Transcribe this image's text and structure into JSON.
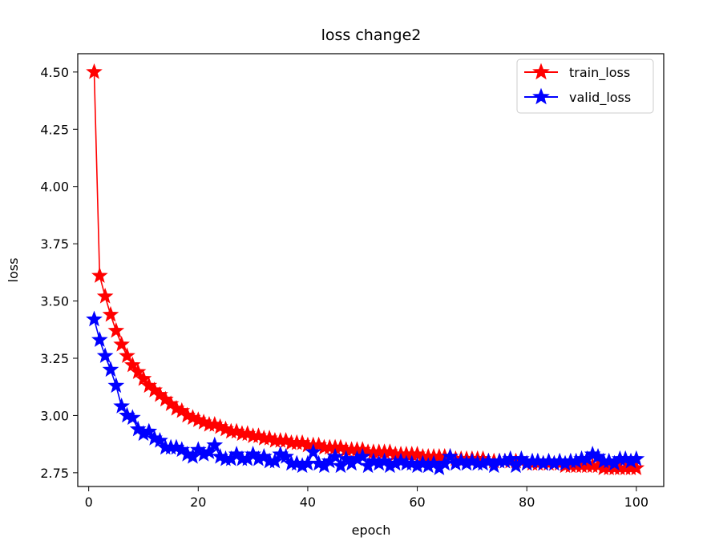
{
  "chart_data": {
    "type": "line",
    "title": "loss change2",
    "xlabel": "epoch",
    "ylabel": "loss",
    "xlim": [
      -2,
      105
    ],
    "ylim": [
      2.69,
      4.58
    ],
    "xticks": [
      0,
      20,
      40,
      60,
      80,
      100
    ],
    "xtick_labels": [
      "0",
      "20",
      "40",
      "60",
      "80",
      "100"
    ],
    "yticks": [
      2.75,
      3.0,
      3.25,
      3.5,
      3.75,
      4.0,
      4.25,
      4.5
    ],
    "ytick_labels": [
      "2.75",
      "3.00",
      "3.25",
      "3.50",
      "3.75",
      "4.00",
      "4.25",
      "4.50"
    ],
    "grid": false,
    "legend_position": "top-right",
    "marker": "star",
    "x": [
      1,
      2,
      3,
      4,
      5,
      6,
      7,
      8,
      9,
      10,
      11,
      12,
      13,
      14,
      15,
      16,
      17,
      18,
      19,
      20,
      21,
      22,
      23,
      24,
      25,
      26,
      27,
      28,
      29,
      30,
      31,
      32,
      33,
      34,
      35,
      36,
      37,
      38,
      39,
      40,
      41,
      42,
      43,
      44,
      45,
      46,
      47,
      48,
      49,
      50,
      51,
      52,
      53,
      54,
      55,
      56,
      57,
      58,
      59,
      60,
      61,
      62,
      63,
      64,
      65,
      66,
      67,
      68,
      69,
      70,
      71,
      72,
      73,
      74,
      75,
      76,
      77,
      78,
      79,
      80,
      81,
      82,
      83,
      84,
      85,
      86,
      87,
      88,
      89,
      90,
      91,
      92,
      93,
      94,
      95,
      96,
      97,
      98,
      99,
      100
    ],
    "series": [
      {
        "name": "train_loss",
        "color": "#ff0000",
        "values": [
          4.5,
          3.61,
          3.52,
          3.44,
          3.37,
          3.31,
          3.26,
          3.22,
          3.19,
          3.16,
          3.13,
          3.11,
          3.09,
          3.07,
          3.05,
          3.03,
          3.02,
          3.0,
          2.99,
          2.98,
          2.97,
          2.96,
          2.96,
          2.95,
          2.94,
          2.93,
          2.93,
          2.92,
          2.92,
          2.91,
          2.91,
          2.9,
          2.9,
          2.89,
          2.89,
          2.89,
          2.88,
          2.88,
          2.88,
          2.87,
          2.87,
          2.87,
          2.86,
          2.86,
          2.86,
          2.86,
          2.85,
          2.85,
          2.85,
          2.85,
          2.84,
          2.84,
          2.84,
          2.84,
          2.84,
          2.83,
          2.83,
          2.83,
          2.83,
          2.83,
          2.82,
          2.82,
          2.82,
          2.82,
          2.82,
          2.82,
          2.81,
          2.81,
          2.81,
          2.81,
          2.81,
          2.81,
          2.8,
          2.8,
          2.8,
          2.8,
          2.8,
          2.8,
          2.8,
          2.79,
          2.79,
          2.79,
          2.79,
          2.79,
          2.79,
          2.79,
          2.78,
          2.78,
          2.78,
          2.78,
          2.78,
          2.78,
          2.78,
          2.77,
          2.77,
          2.77,
          2.77,
          2.77,
          2.77,
          2.77
        ]
      },
      {
        "name": "valid_loss",
        "color": "#0000ff",
        "values": [
          3.42,
          3.33,
          3.26,
          3.2,
          3.13,
          3.04,
          3.0,
          2.99,
          2.94,
          2.92,
          2.93,
          2.9,
          2.89,
          2.86,
          2.86,
          2.86,
          2.85,
          2.83,
          2.82,
          2.85,
          2.83,
          2.84,
          2.87,
          2.82,
          2.81,
          2.81,
          2.83,
          2.81,
          2.81,
          2.83,
          2.81,
          2.82,
          2.8,
          2.8,
          2.83,
          2.82,
          2.79,
          2.79,
          2.78,
          2.79,
          2.84,
          2.79,
          2.78,
          2.8,
          2.82,
          2.78,
          2.81,
          2.79,
          2.81,
          2.82,
          2.78,
          2.8,
          2.79,
          2.8,
          2.78,
          2.79,
          2.8,
          2.79,
          2.79,
          2.78,
          2.79,
          2.78,
          2.79,
          2.77,
          2.79,
          2.82,
          2.79,
          2.8,
          2.79,
          2.8,
          2.79,
          2.79,
          2.8,
          2.78,
          2.8,
          2.8,
          2.81,
          2.78,
          2.81,
          2.79,
          2.8,
          2.8,
          2.79,
          2.8,
          2.79,
          2.8,
          2.79,
          2.8,
          2.8,
          2.81,
          2.81,
          2.83,
          2.82,
          2.8,
          2.8,
          2.79,
          2.81,
          2.81,
          2.8,
          2.81
        ]
      }
    ]
  }
}
